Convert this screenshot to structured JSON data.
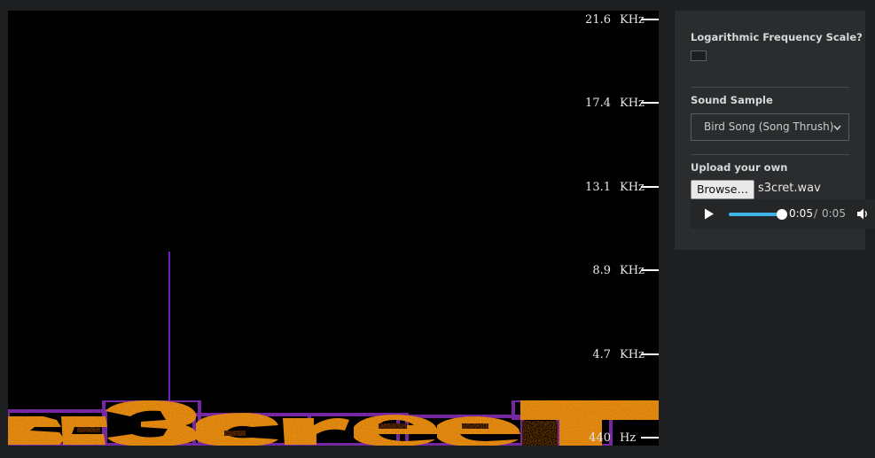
{
  "spectrogram": {
    "axis_ticks": [
      {
        "value": "21.6",
        "unit": "KHz"
      },
      {
        "value": "17.4",
        "unit": "KHz"
      },
      {
        "value": "13.1",
        "unit": "KHz"
      },
      {
        "value": "8.9",
        "unit": "KHz"
      },
      {
        "value": "4.7",
        "unit": "KHz"
      },
      {
        "value": "440",
        "unit": "Hz"
      }
    ],
    "hidden_text": "s3cretT",
    "colors": {
      "background": "#000000",
      "hot": "#f0a020",
      "warm": "#c8641a",
      "cool": "#7a1cc0",
      "line": "#6a1fbf"
    }
  },
  "panel": {
    "log_scale": {
      "label": "Logarithmic Frequency Scale?",
      "checked": false
    },
    "sound_sample": {
      "label": "Sound Sample",
      "selected": "Bird Song (Song Thrush)",
      "chevron_icon": "chevron-down-icon"
    },
    "upload": {
      "label": "Upload your own",
      "browse_label": "Browse…",
      "file_name": "s3cret.wav"
    }
  },
  "audio": {
    "current_time": "0:05",
    "separator": "/",
    "total_time": "0:05",
    "progress": 1.0,
    "play_icon": "play-icon",
    "volume_icon": "volume-icon"
  }
}
